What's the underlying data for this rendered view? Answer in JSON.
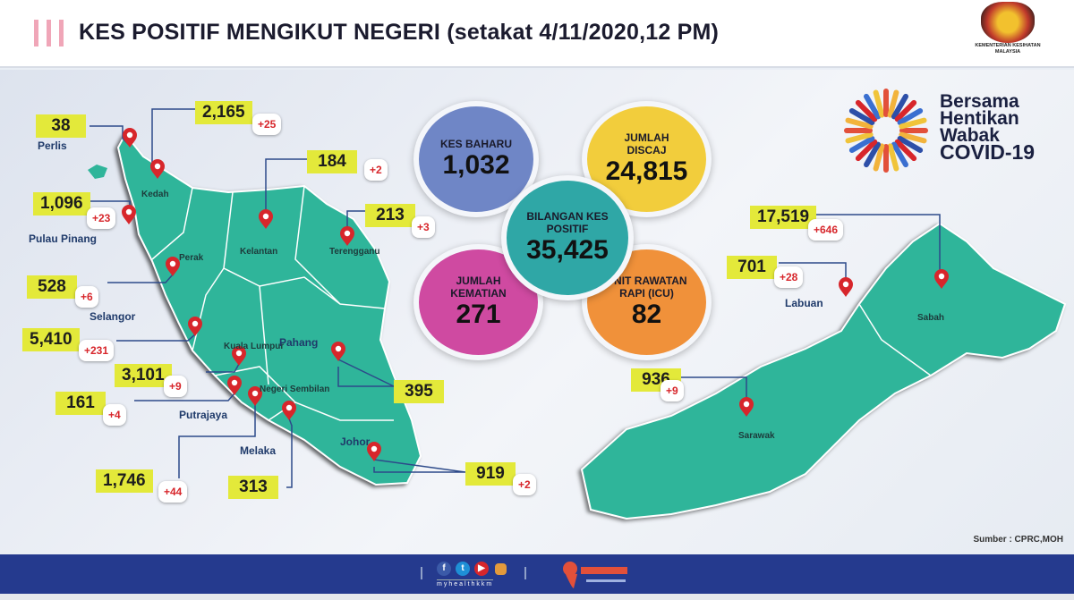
{
  "header": {
    "title": "KES POSITIF MENGIKUT NEGERI (setakat 4/11/2020,12 PM)",
    "ministry": "KEMENTERIAN KESIHATAN MALAYSIA"
  },
  "summary": {
    "new_cases": {
      "label": "KES BAHARU",
      "value": "1,032",
      "color": "#6f86c6"
    },
    "discharged": {
      "label": "JUMLAH DISCAJ",
      "value": "24,815",
      "color": "#f2cd3c"
    },
    "total": {
      "label": "BILANGAN KES POSITIF",
      "value": "35,425",
      "color": "#2fa7a6"
    },
    "deaths": {
      "label": "JUMLAH KEMATIAN",
      "value": "271",
      "color": "#cf4aa1"
    },
    "icu": {
      "label": "UNIT RAWATAN RAPI (ICU)",
      "value": "82",
      "color": "#f0913a"
    }
  },
  "campaign": {
    "lines": [
      "Bersama",
      "Hentikan",
      "Wabak",
      "COVID-19"
    ]
  },
  "states": [
    {
      "name": "Perlis",
      "total": "38",
      "new": ""
    },
    {
      "name": "Kedah",
      "total": "2,165",
      "new": "+25"
    },
    {
      "name": "Pulau Pinang",
      "total": "1,096",
      "new": "+23"
    },
    {
      "name": "Perak",
      "total": "528",
      "new": "+6"
    },
    {
      "name": "Selangor",
      "total": "5,410",
      "new": "+231"
    },
    {
      "name": "Kuala Lumpur",
      "total": "3,101",
      "new": "+9"
    },
    {
      "name": "Putrajaya",
      "total": "161",
      "new": "+4"
    },
    {
      "name": "Negeri Sembilan",
      "total": "1,746",
      "new": "+44"
    },
    {
      "name": "Melaka",
      "total": "313",
      "new": ""
    },
    {
      "name": "Kelantan",
      "total": "184",
      "new": "+2"
    },
    {
      "name": "Terengganu",
      "total": "213",
      "new": "+3"
    },
    {
      "name": "Pahang",
      "total": "395",
      "new": ""
    },
    {
      "name": "Johor",
      "total": "919",
      "new": "+2"
    },
    {
      "name": "Sabah",
      "total": "17,519",
      "new": "+646"
    },
    {
      "name": "Labuan",
      "total": "701",
      "new": "+28"
    },
    {
      "name": "Sarawak",
      "total": "936",
      "new": "+9"
    }
  ],
  "source": "Sumber : CPRC,MOH",
  "footer": {
    "handle": "myhealthkkm",
    "social": [
      "facebook",
      "twitter",
      "youtube",
      "instagram"
    ]
  },
  "colors": {
    "map": "#2fb59a",
    "label": "#e3e93a",
    "footer": "#253a8e",
    "pin": "#d7262b"
  }
}
